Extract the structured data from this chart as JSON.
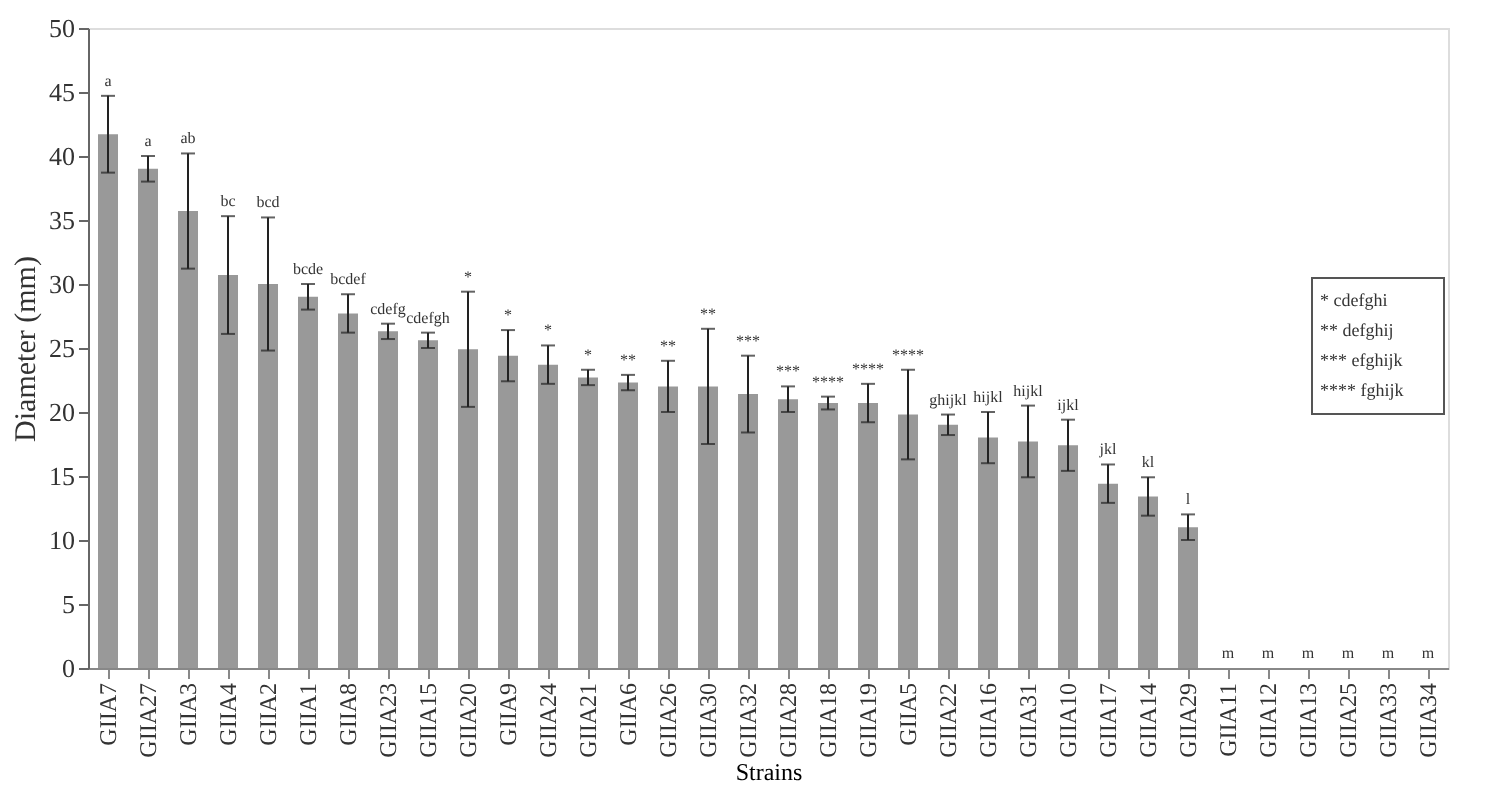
{
  "chart_data": {
    "type": "bar",
    "xlabel": "Strains",
    "ylabel": "Diameter (mm)",
    "categories": [
      "GIIA7",
      "GIIA27",
      "GIIA3",
      "GIIA4",
      "GIIA2",
      "GIIA1",
      "GIIA8",
      "GIIA23",
      "GIIA15",
      "GIIA20",
      "GIIA9",
      "GIIA24",
      "GIIA21",
      "GIIA6",
      "GIIA26",
      "GIIA30",
      "GIIA32",
      "GIIA28",
      "GIIA18",
      "GIIA19",
      "GIIA5",
      "GIIA22",
      "GIIA16",
      "GIIA31",
      "GIIA10",
      "GIIA17",
      "GIIA14",
      "GIIA29",
      "GIIA11",
      "GIIA12",
      "GIIA13",
      "GIIA25",
      "GIIA33",
      "GIIA34"
    ],
    "values": [
      41.7,
      39,
      35.7,
      30.7,
      30,
      29,
      27.7,
      26.3,
      25.6,
      24.9,
      24.4,
      23.7,
      22.7,
      22.3,
      22,
      22,
      21.4,
      21,
      20.7,
      20.7,
      19.8,
      19,
      18,
      17.7,
      17.4,
      14.4,
      13.4,
      11,
      0,
      0,
      0,
      0,
      0,
      0
    ],
    "errors": [
      3,
      1,
      4.5,
      4.6,
      5.2,
      1,
      1.5,
      0.6,
      0.6,
      4.5,
      2,
      1.5,
      0.6,
      0.6,
      2,
      4.5,
      3,
      1,
      0.5,
      1.5,
      3.5,
      0.8,
      2,
      2.8,
      2,
      1.5,
      1.5,
      1,
      null,
      null,
      null,
      null,
      null,
      null
    ],
    "color": "#999999",
    "ylim": [
      0,
      50
    ],
    "yticks": [
      0,
      5,
      10,
      15,
      20,
      25,
      30,
      35,
      40,
      45,
      50
    ],
    "grid": false,
    "annotations": [
      {
        "text": "a",
        "x": "GIIA7",
        "y": 44.7
      },
      {
        "text": "a",
        "x": "GIIA27",
        "y": 40
      },
      {
        "text": "ab",
        "x": "GIIA3",
        "y": 40.2
      },
      {
        "text": "bc",
        "x": "GIIA4",
        "y": 35.3
      },
      {
        "text": "bcd",
        "x": "GIIA2",
        "y": 35.2
      },
      {
        "text": "bcde",
        "x": "GIIA1",
        "y": 30
      },
      {
        "text": "bcdef",
        "x": "GIIA8",
        "y": 29.2
      },
      {
        "text": "cdefg",
        "x": "GIIA23",
        "y": 26.9
      },
      {
        "text": "cdefgh",
        "x": "GIIA15",
        "y": 26.2
      },
      {
        "text": "*",
        "x": "GIIA20",
        "y": 29.4
      },
      {
        "text": "*",
        "x": "GIIA9",
        "y": 26.4
      },
      {
        "text": "*",
        "x": "GIIA24",
        "y": 25.2
      },
      {
        "text": "*",
        "x": "GIIA21",
        "y": 23.3
      },
      {
        "text": "**",
        "x": "GIIA6",
        "y": 22.9
      },
      {
        "text": "**",
        "x": "GIIA26",
        "y": 24
      },
      {
        "text": "**",
        "x": "GIIA30",
        "y": 26.5
      },
      {
        "text": "***",
        "x": "GIIA32",
        "y": 24.4
      },
      {
        "text": "***",
        "x": "GIIA28",
        "y": 22
      },
      {
        "text": "****",
        "x": "GIIA18",
        "y": 21.2
      },
      {
        "text": "****",
        "x": "GIIA19",
        "y": 22.2
      },
      {
        "text": "****",
        "x": "GIIA5",
        "y": 23.3
      },
      {
        "text": "ghijkl",
        "x": "GIIA22",
        "y": 19.8
      },
      {
        "text": "hijkl",
        "x": "GIIA16",
        "y": 20
      },
      {
        "text": "hijkl",
        "x": "GIIA31",
        "y": 20.5
      },
      {
        "text": "ijkl",
        "x": "GIIA10",
        "y": 19.4
      },
      {
        "text": "jkl",
        "x": "GIIA17",
        "y": 15.9
      },
      {
        "text": "kl",
        "x": "GIIA14",
        "y": 14.9
      },
      {
        "text": "l",
        "x": "GIIA29",
        "y": 12
      },
      {
        "text": "m",
        "x": "GIIA11",
        "y": 0
      },
      {
        "text": "m",
        "x": "GIIA12",
        "y": 0
      },
      {
        "text": "m",
        "x": "GIIA13",
        "y": 0
      },
      {
        "text": "m",
        "x": "GIIA25",
        "y": 0
      },
      {
        "text": "m",
        "x": "GIIA33",
        "y": 0
      },
      {
        "text": "m",
        "x": "GIIA34",
        "y": 0
      },
      "* cdefghi",
      "** defghij",
      "*** efghijk",
      "**** fghijk"
    ]
  }
}
